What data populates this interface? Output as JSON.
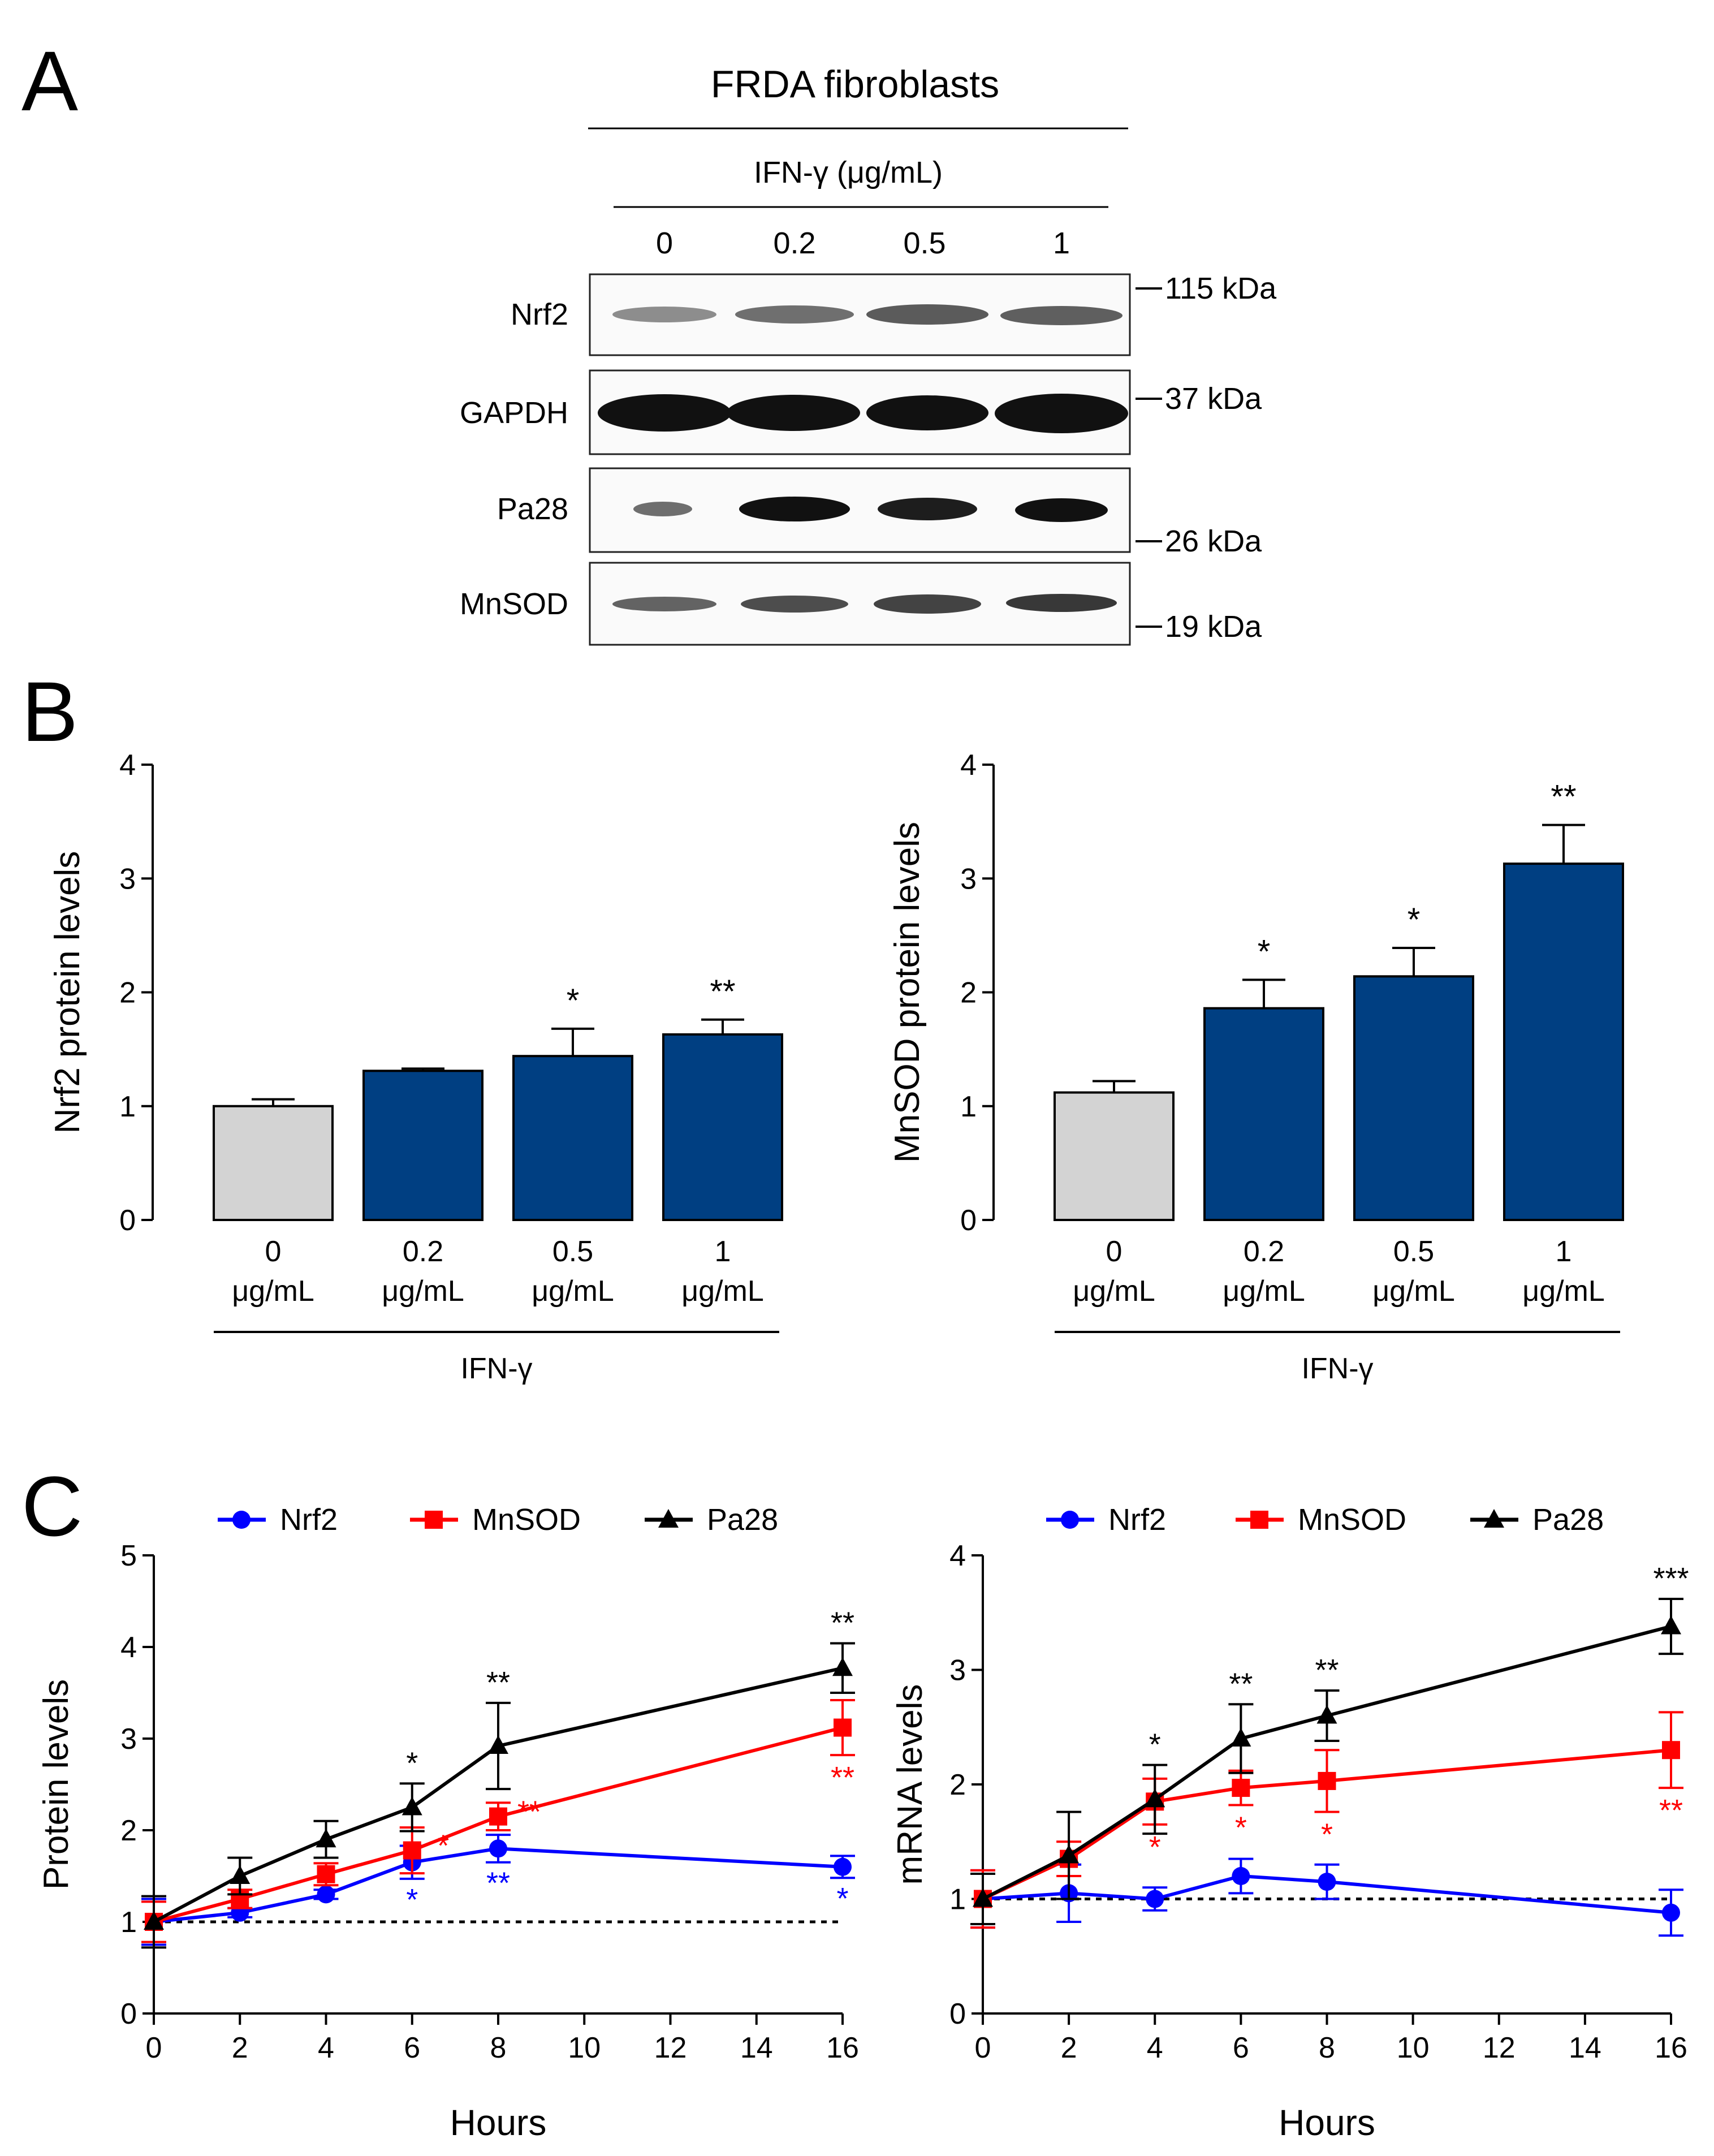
{
  "panel_letters": {
    "a": "A",
    "b": "B",
    "c": "C"
  },
  "panel_a": {
    "title": "FRDA fibroblasts",
    "treatment_label": "IFN-γ (μg/mL)",
    "lanes": [
      "0",
      "0.2",
      "0.5",
      "1"
    ],
    "rows": [
      "Nrf2",
      "GAPDH",
      "Pa28",
      "MnSOD"
    ],
    "markers": [
      "115 kDa",
      "37 kDa",
      "26 kDa",
      "19 kDa"
    ]
  },
  "chart_data": [
    {
      "type": "bar",
      "panel": "B-left",
      "title": "",
      "xlabel": "IFN-γ",
      "ylabel": "Nrf2 protein levels",
      "ylim": [
        0,
        4
      ],
      "yticks": [
        "0",
        "1",
        "2",
        "3",
        "4"
      ],
      "categories": [
        [
          "0",
          "μg/mL"
        ],
        [
          "0.2",
          "μg/mL"
        ],
        [
          "0.5",
          "μg/mL"
        ],
        [
          "1",
          "μg/mL"
        ]
      ],
      "values": [
        1.0,
        1.31,
        1.44,
        1.63
      ],
      "errors": [
        0.06,
        0.02,
        0.24,
        0.13
      ],
      "significance": [
        "",
        "",
        "*",
        "**"
      ],
      "colors": [
        "#d3d3d3",
        "#003f82",
        "#003f82",
        "#003f82"
      ]
    },
    {
      "type": "bar",
      "panel": "B-right",
      "title": "",
      "xlabel": "IFN-γ",
      "ylabel": "MnSOD protein levels",
      "ylim": [
        0,
        4
      ],
      "yticks": [
        "0",
        "1",
        "2",
        "3",
        "4"
      ],
      "categories": [
        [
          "0",
          "μg/mL"
        ],
        [
          "0.2",
          "μg/mL"
        ],
        [
          "0.5",
          "μg/mL"
        ],
        [
          "1",
          "μg/mL"
        ]
      ],
      "values": [
        1.12,
        1.86,
        2.14,
        3.13
      ],
      "errors": [
        0.1,
        0.25,
        0.25,
        0.34
      ],
      "significance": [
        "",
        "*",
        "*",
        "**"
      ],
      "colors": [
        "#d3d3d3",
        "#003f82",
        "#003f82",
        "#003f82"
      ]
    },
    {
      "type": "line",
      "panel": "C-left",
      "title": "",
      "xlabel": "Hours",
      "ylabel": "Protein levels",
      "ylim": [
        0,
        5
      ],
      "yticks": [
        "0",
        "1",
        "2",
        "3",
        "4",
        "5"
      ],
      "xticks": [
        "0",
        "2",
        "4",
        "6",
        "8",
        "10",
        "12",
        "14",
        "16"
      ],
      "baseline": 1,
      "x": [
        0,
        2,
        4,
        6,
        8,
        16
      ],
      "series": [
        {
          "name": "Nrf2",
          "color": "#0000ff",
          "marker": "circle",
          "values": [
            1.0,
            1.1,
            1.3,
            1.65,
            1.8,
            1.6
          ],
          "errors": [
            0.25,
            0.05,
            0.05,
            0.18,
            0.15,
            0.12
          ],
          "significance": [
            "",
            "",
            "",
            "*",
            "**",
            "*"
          ]
        },
        {
          "name": "MnSOD",
          "color": "#ff0000",
          "marker": "square",
          "values": [
            1.0,
            1.25,
            1.52,
            1.78,
            2.15,
            3.12
          ],
          "errors": [
            0.22,
            0.1,
            0.12,
            0.25,
            0.15,
            0.3
          ],
          "significance": [
            "",
            "",
            "",
            "*",
            "**",
            "**"
          ]
        },
        {
          "name": "Pa28",
          "color": "#000000",
          "marker": "triangle",
          "values": [
            1.0,
            1.5,
            1.9,
            2.25,
            2.92,
            3.77
          ],
          "errors": [
            0.28,
            0.2,
            0.2,
            0.26,
            0.47,
            0.27
          ],
          "significance": [
            "",
            "",
            "",
            "*",
            "**",
            "**"
          ]
        }
      ]
    },
    {
      "type": "line",
      "panel": "C-right",
      "title": "",
      "xlabel": "Hours",
      "ylabel": "mRNA levels",
      "ylim": [
        0,
        4
      ],
      "yticks": [
        "0",
        "1",
        "2",
        "3",
        "4"
      ],
      "xticks": [
        "0",
        "2",
        "4",
        "6",
        "8",
        "10",
        "12",
        "14",
        "16"
      ],
      "baseline": 1,
      "x": [
        0,
        2,
        4,
        6,
        8,
        16
      ],
      "series": [
        {
          "name": "Nrf2",
          "color": "#0000ff",
          "marker": "circle",
          "values": [
            1.0,
            1.05,
            1.0,
            1.2,
            1.15,
            0.88
          ],
          "errors": [
            0.25,
            0.25,
            0.1,
            0.15,
            0.15,
            0.2
          ],
          "significance": [
            "",
            "",
            "",
            "",
            "",
            ""
          ]
        },
        {
          "name": "MnSOD",
          "color": "#ff0000",
          "marker": "square",
          "values": [
            1.0,
            1.35,
            1.85,
            1.97,
            2.03,
            2.3
          ],
          "errors": [
            0.25,
            0.15,
            0.2,
            0.15,
            0.27,
            0.33
          ],
          "significance": [
            "",
            "",
            "*",
            "*",
            "*",
            "**"
          ]
        },
        {
          "name": "Pa28",
          "color": "#000000",
          "marker": "triangle",
          "values": [
            1.0,
            1.38,
            1.87,
            2.4,
            2.6,
            3.38
          ],
          "errors": [
            0.22,
            0.38,
            0.3,
            0.3,
            0.22,
            0.24
          ],
          "significance": [
            "",
            "",
            "*",
            "**",
            "**",
            "***"
          ]
        }
      ]
    }
  ]
}
